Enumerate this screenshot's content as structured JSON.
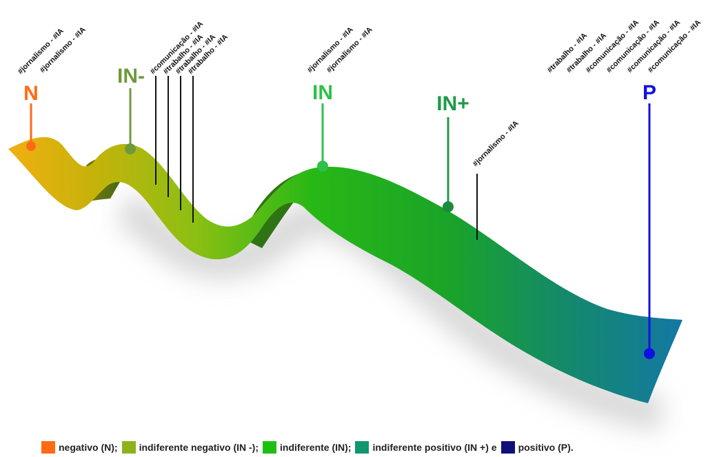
{
  "markers": [
    {
      "id": "N",
      "label": "N",
      "color": "#ff6a14"
    },
    {
      "id": "IN-",
      "label": "IN-",
      "color": "#6f9a3c"
    },
    {
      "id": "IN",
      "label": "IN",
      "color": "#2fc04a"
    },
    {
      "id": "IN+",
      "label": "IN+",
      "color": "#1e9a48"
    },
    {
      "id": "P",
      "label": "P",
      "color": "#1010e0"
    }
  ],
  "tags": {
    "N": [
      "#jornalismo - #IA",
      "#jornalismo - #IA"
    ],
    "IN-": [
      "#comunicação - #IA",
      "#trabalho - #IA",
      "#trabalho - #IA",
      "#trabalho - #IA"
    ],
    "IN": [
      "#jornalismo - #IA",
      "#jornalismo - #IA"
    ],
    "IN+": [
      "#jornalismo - #IA"
    ],
    "P": [
      "#trabalho - #IA",
      "#trabalho - #IA",
      "#comunicação - #IA",
      "#comunicação - #IA",
      "#comunicação - #IA",
      "#comunicação - #IA"
    ]
  },
  "legend": {
    "items": [
      {
        "text": "negativo (N);",
        "color": "#ff6a14"
      },
      {
        "text": "indiferente negativo (IN -);",
        "color": "#8fb21a"
      },
      {
        "text": "indiferente (IN);",
        "color": "#1fbf12"
      },
      {
        "text": "indiferente positivo (IN +) e",
        "color": "#139670"
      },
      {
        "text": "positivo (P).",
        "color": "#10107a"
      }
    ]
  }
}
